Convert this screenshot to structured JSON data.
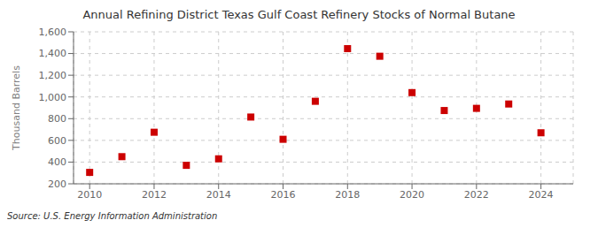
{
  "chart_data": {
    "type": "scatter",
    "title": "Annual Refining District Texas Gulf Coast Refinery Stocks of Normal Butane",
    "y_label": "Thousand Barrels",
    "annotations": [
      "Source: U.S. Energy Information Administration"
    ],
    "x": [
      2010,
      2011,
      2012,
      2013,
      2014,
      2015,
      2016,
      2017,
      2018,
      2019,
      2020,
      2021,
      2022,
      2023,
      2024
    ],
    "values": [
      305,
      450,
      675,
      370,
      430,
      815,
      610,
      960,
      1445,
      1375,
      1040,
      875,
      895,
      935,
      670
    ],
    "color": "#cc0000",
    "marker": "square",
    "grid": true,
    "xlim": [
      2009.5,
      2025.0
    ],
    "xticks": [
      2010,
      2012,
      2014,
      2016,
      2018,
      2020,
      2022,
      2024
    ],
    "ylim": [
      200,
      1600
    ],
    "yticks": [
      200,
      400,
      600,
      800,
      {
        "value": 1000,
        "label": "1,000"
      },
      {
        "value": 1200,
        "label": "1,200"
      },
      {
        "value": 1400,
        "label": "1,400"
      },
      {
        "value": 1600,
        "label": "1,600"
      }
    ]
  }
}
